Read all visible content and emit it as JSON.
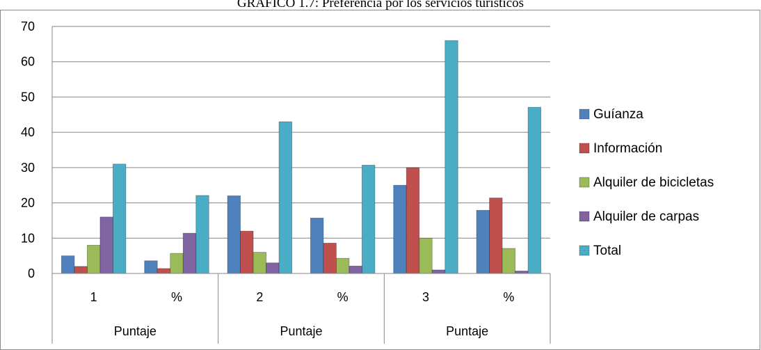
{
  "chart_data": {
    "type": "bar",
    "title": "GRÁFICO 1.7: Preferencia por los servicios turísticos",
    "xlabel": "",
    "ylabel": "",
    "ylim": [
      0,
      70
    ],
    "yticks": [
      "0",
      "10",
      "20",
      "30",
      "40",
      "50",
      "60",
      "70"
    ],
    "grid": true,
    "legend_position": "right",
    "categories": [
      "1",
      "%",
      "2",
      "%",
      "3",
      "%"
    ],
    "groups": [
      "Puntaje",
      "Puntaje",
      "Puntaje"
    ],
    "series": [
      {
        "name": "Guíanza",
        "color": "#4F81BD",
        "values": [
          5,
          3.6,
          22,
          15.7,
          25,
          17.9
        ]
      },
      {
        "name": "Información",
        "color": "#C0504D",
        "values": [
          2,
          1.4,
          12,
          8.6,
          30,
          21.4
        ]
      },
      {
        "name": "Alquiler de bicicletas",
        "color": "#9BBB59",
        "values": [
          8,
          5.7,
          6,
          4.3,
          10,
          7.1
        ]
      },
      {
        "name": "Alquiler de carpas",
        "color": "#8064A2",
        "values": [
          16,
          11.4,
          3,
          2.1,
          1,
          0.7
        ]
      },
      {
        "name": "Total",
        "color": "#4BACC6",
        "values": [
          31,
          22.1,
          43,
          30.7,
          66,
          47.1
        ]
      }
    ]
  }
}
